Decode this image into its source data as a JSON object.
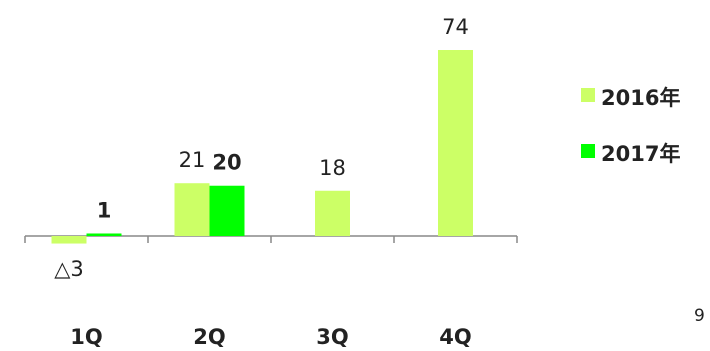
{
  "chart_data": {
    "type": "bar",
    "categories": [
      "1Q",
      "2Q",
      "3Q",
      "4Q"
    ],
    "series": [
      {
        "name": "2016年",
        "color": "#ccff66",
        "values": [
          -3,
          21,
          18,
          74
        ],
        "labels": [
          "△3",
          "21",
          "18",
          "74"
        ],
        "label_bold": false
      },
      {
        "name": "2017年",
        "color": "#00ff00",
        "values": [
          1,
          20,
          null,
          null
        ],
        "labels": [
          "1",
          "20",
          "",
          ""
        ],
        "label_bold": true
      }
    ],
    "ylim": [
      -3,
      74
    ],
    "legend_position": "right",
    "grid": false
  },
  "page_number": "9"
}
